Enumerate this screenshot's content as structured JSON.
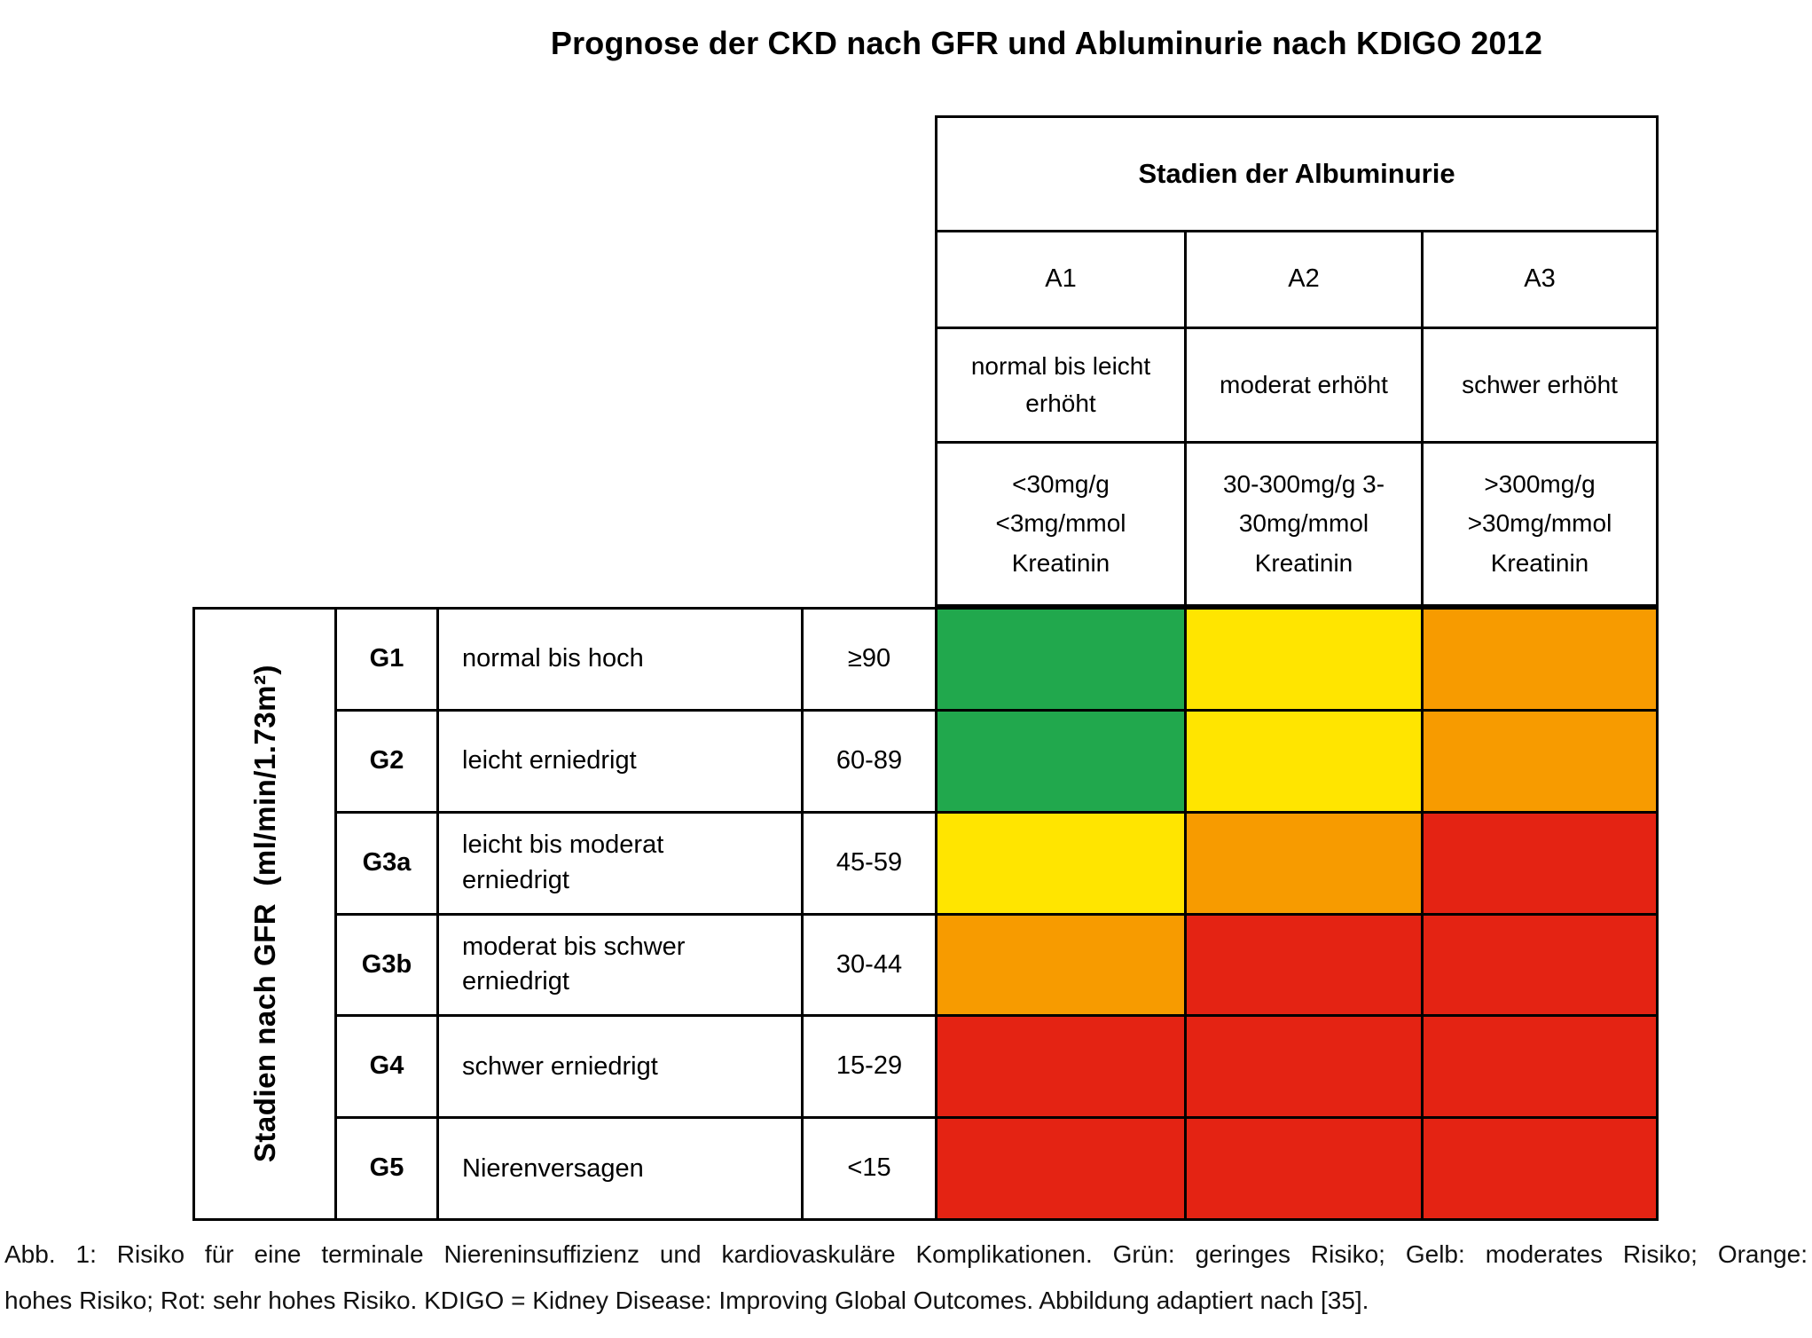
{
  "title": "Prognose der CKD nach GFR und Abluminurie nach KDIGO 2012",
  "albuminuria_header": {
    "title": "Stadien der Albuminurie",
    "columns": [
      {
        "label": "A1",
        "description": "normal bis leicht\nerhöht",
        "value": "<30mg/g\n<3mg/mmol\nKreatinin"
      },
      {
        "label": "A2",
        "description": "moderat erhöht",
        "value": "30-300mg/g 3-\n30mg/mmol\nKreatinin"
      },
      {
        "label": "A3",
        "description": "schwer erhöht",
        "value": ">300mg/g\n>30mg/mmol\nKreatinin"
      }
    ]
  },
  "gfr_axis_label": "Stadien nach GFR  (ml/min/1.73m²)",
  "matrix": {
    "rows": [
      {
        "stage": "G1",
        "description": "normal bis hoch",
        "range": "≥90",
        "risk_colors": [
          "green",
          "yellow",
          "orange"
        ]
      },
      {
        "stage": "G2",
        "description": "leicht erniedrigt",
        "range": "60-89",
        "risk_colors": [
          "green",
          "yellow",
          "orange"
        ]
      },
      {
        "stage": "G3a",
        "description": "leicht bis moderat\nerniedrigt",
        "range": "45-59",
        "risk_colors": [
          "yellow",
          "orange",
          "red"
        ]
      },
      {
        "stage": "G3b",
        "description": "moderat bis schwer\nerniedrigt",
        "range": "30-44",
        "risk_colors": [
          "orange",
          "red",
          "red"
        ]
      },
      {
        "stage": "G4",
        "description": "schwer erniedrigt",
        "range": "15-29",
        "risk_colors": [
          "red",
          "red",
          "red"
        ]
      },
      {
        "stage": "G5",
        "description": "Nierenversagen",
        "range": "<15",
        "risk_colors": [
          "red",
          "red",
          "red"
        ]
      }
    ]
  },
  "colors": {
    "green": "#21a84d",
    "yellow": "#ffe500",
    "orange": "#f79b00",
    "red": "#e42313"
  },
  "caption": {
    "line1": "Abb. 1: Risiko für eine terminale Niereninsuffizienz und kardiovaskuläre Komplikationen. Grün: geringes Risiko; Gelb: moderates Risiko; Orange:",
    "line2": "hohes Risiko; Rot: sehr hohes Risiko. KDIGO = Kidney Disease: Improving Global Outcomes. Abbildung adaptiert nach [35]."
  },
  "chart_data": {
    "type": "heatmap",
    "title": "Prognose der CKD nach GFR und Abluminurie nach KDIGO 2012",
    "xlabel": "Stadien der Albuminurie",
    "ylabel": "Stadien nach GFR (ml/min/1.73m²)",
    "x_categories": [
      "A1: normal bis leicht erhöht, <30mg/g <3mg/mmol Kreatinin",
      "A2: moderat erhöht, 30-300mg/g 3-30mg/mmol Kreatinin",
      "A3: schwer erhöht, >300mg/g >30mg/mmol Kreatinin"
    ],
    "y_categories": [
      "G1: normal bis hoch, ≥90",
      "G2: leicht erniedrigt, 60-89",
      "G3a: leicht bis moderat erniedrigt, 45-59",
      "G3b: moderat bis schwer erniedrigt, 30-44",
      "G4: schwer erniedrigt, 15-29",
      "G5: Nierenversagen, <15"
    ],
    "values": [
      [
        "green",
        "yellow",
        "orange"
      ],
      [
        "green",
        "yellow",
        "orange"
      ],
      [
        "yellow",
        "orange",
        "red"
      ],
      [
        "orange",
        "red",
        "red"
      ],
      [
        "red",
        "red",
        "red"
      ],
      [
        "red",
        "red",
        "red"
      ]
    ],
    "legend": {
      "green": "geringes Risiko",
      "yellow": "moderates Risiko",
      "orange": "hohes Risiko",
      "red": "sehr hohes Risiko"
    },
    "grid": true,
    "legend_position": "caption-text"
  }
}
